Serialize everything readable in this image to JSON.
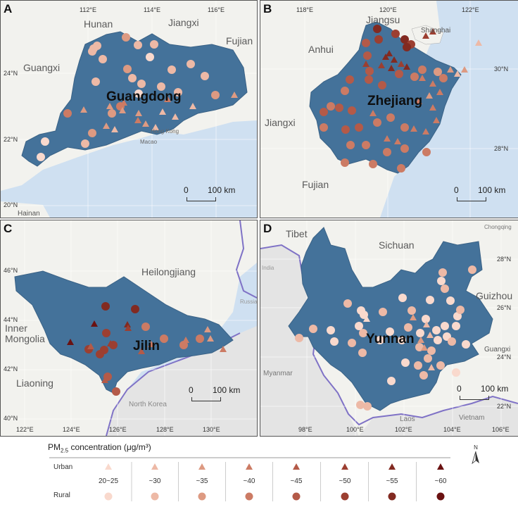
{
  "panels": {
    "A": {
      "label": "A",
      "province": "Guangdong",
      "lon_ticks": [
        "112°E",
        "114°E",
        "116°E"
      ],
      "lat_ticks": [
        "24°N",
        "22°N",
        "20°N"
      ],
      "neighbors": [
        "Hunan",
        "Jiangxi",
        "Fujian",
        "Guangxi",
        "Hainan"
      ],
      "places": [
        "Hong Kong",
        "Macao"
      ],
      "scale": {
        "zero": "0",
        "dist": "100 km"
      }
    },
    "B": {
      "label": "B",
      "province": "Zhejiang",
      "lon_ticks": [
        "118°E",
        "120°E",
        "122°E"
      ],
      "lat_ticks": [
        "30°N",
        "28°N"
      ],
      "neighbors": [
        "Jiangsu",
        "Anhui",
        "Jiangxi",
        "Fujian"
      ],
      "places": [
        "Shanghai"
      ],
      "scale": {
        "zero": "0",
        "dist": "100 km"
      }
    },
    "C": {
      "label": "C",
      "province": "Jilin",
      "lon_ticks": [
        "122°E",
        "124°E",
        "126°E",
        "128°E",
        "130°E"
      ],
      "lat_ticks": [
        "46°N",
        "44°N",
        "42°N",
        "40°N"
      ],
      "neighbors": [
        "Heilongjiang",
        "Inner Mongolia",
        "Liaoning",
        "North Korea",
        "Russia"
      ],
      "scale": {
        "zero": "0",
        "dist": "100 km"
      }
    },
    "D": {
      "label": "D",
      "province": "Yunnan",
      "lon_ticks": [
        "98°E",
        "100°E",
        "102°E",
        "104°E",
        "106°E"
      ],
      "lat_ticks": [
        "28°N",
        "26°N",
        "24°N",
        "22°N"
      ],
      "neighbors": [
        "Tibet",
        "Sichuan",
        "Guizhou",
        "Guangxi",
        "Myanmar",
        "Laos",
        "Vietnam",
        "India",
        "Chongqing"
      ],
      "scale": {
        "zero": "0",
        "dist": "100 km"
      }
    }
  },
  "legend": {
    "title_prefix": "PM",
    "title_sub": "2.5",
    "title_suffix": " concentration (μg/m³)",
    "row_urban": "Urban",
    "row_rural": "Rural",
    "classes": [
      "20~25",
      "~30",
      "~35",
      "~40",
      "~45",
      "~50",
      "~55",
      "~60"
    ],
    "colors": [
      "#f9d9cd",
      "#edb9a6",
      "#dd9a82",
      "#cc7b64",
      "#b45a48",
      "#9c3f31",
      "#822a21",
      "#6a1212"
    ],
    "north_label": "N"
  },
  "style": {
    "province_color": "#44729a",
    "land_color": "#f2f2ee",
    "water_color": "#cfe0f1",
    "foreign_land": "#e4e4e4",
    "border_purple": "#7f72c6"
  }
}
